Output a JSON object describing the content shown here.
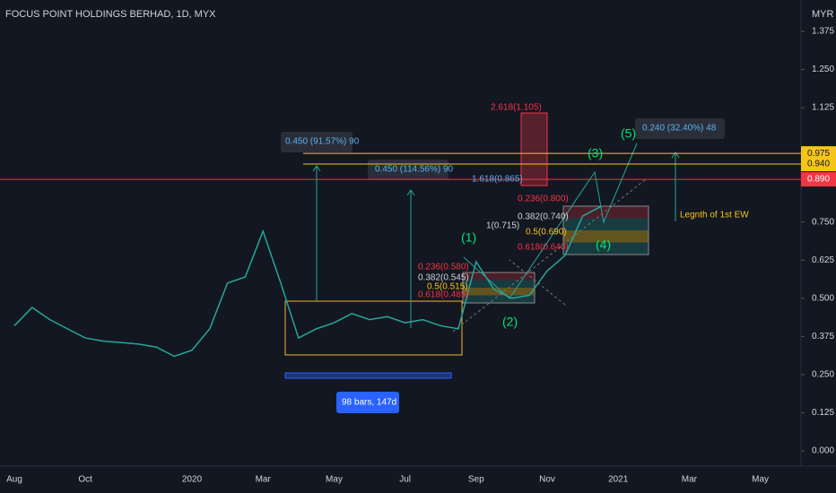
{
  "chart_data": {
    "type": "line",
    "title": "FOCUS POINT HOLDINGS BERHAD, 1D, MYX",
    "currency": "MYR",
    "color": "#26a69a",
    "categories": [
      null,
      "Aug",
      null,
      null,
      null,
      "Oct",
      null,
      null,
      null,
      null,
      null,
      "2020",
      null,
      null,
      null,
      "Mar",
      null,
      null,
      null,
      "May",
      null,
      null,
      null,
      "Jul",
      null,
      null,
      null,
      "Sep",
      null,
      null,
      null,
      "Nov",
      null,
      null,
      null,
      "2021",
      null,
      null,
      null,
      "Mar",
      null,
      null,
      null,
      "May",
      null,
      null
    ],
    "values": [
      null,
      0.41,
      0.47,
      0.43,
      0.4,
      0.37,
      0.36,
      0.355,
      0.35,
      0.34,
      0.31,
      0.33,
      0.4,
      0.55,
      0.57,
      0.72,
      0.55,
      0.37,
      0.4,
      0.42,
      0.45,
      0.43,
      0.44,
      0.42,
      0.43,
      0.41,
      0.4,
      0.62,
      0.53,
      0.5,
      0.51,
      0.59,
      0.64,
      0.77,
      0.8,
      null,
      null,
      null,
      null,
      null,
      null,
      null,
      null,
      null,
      null,
      null
    ],
    "ylim": [
      -0.05,
      1.43
    ],
    "yticks": [
      {
        "value": 0.0,
        "label": "0.000"
      },
      0.125,
      {
        "value": 0.25,
        "label": "0.250"
      },
      0.375,
      {
        "value": 0.5,
        "label": "0.500"
      },
      0.625,
      {
        "value": 0.75,
        "label": "0.750"
      },
      {
        "value": 1.125,
        "label": "1.125"
      },
      {
        "value": 1.25,
        "label": "1.250"
      },
      1.375
    ],
    "price_lines": [
      {
        "value": 0.975,
        "color": "#f5c518"
      },
      {
        "value": 0.94,
        "label": "0.940",
        "color": "#f5c518"
      },
      {
        "value": 0.89,
        "label": "0.890",
        "color": "#f23645"
      }
    ],
    "annotations": [
      "2.618(1.105)",
      "1.618(0.865)",
      "0.236(0.800)",
      "0.382(0.740)",
      "1(0.715)",
      "0.5(0.690)",
      "0.618(0.640)",
      "0.236(0.580)",
      "0.382(0.545)",
      "0.5(0.515)",
      "0.618(0.485)",
      "(1)",
      "(2)",
      "(3)",
      "(4)",
      "(5)",
      "0.450 (91.57%) 90",
      "0.450 (114.56%) 90",
      "0.240 (32.40%) 48",
      "Legnth of 1st EW",
      "98 bars, 147d"
    ]
  }
}
